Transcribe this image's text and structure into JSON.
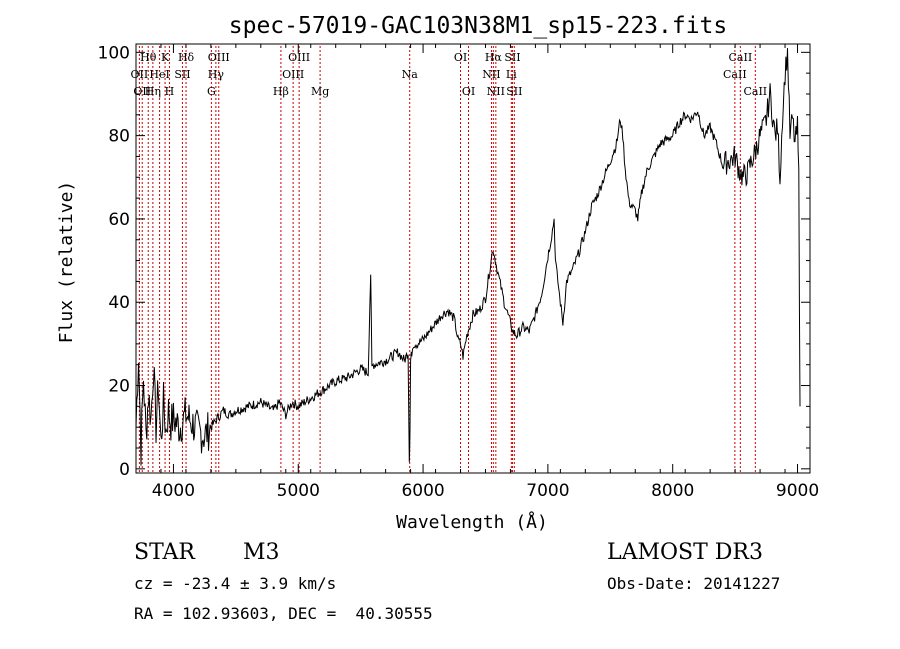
{
  "chart_data": {
    "type": "line",
    "title": "spec-57019-GAC103N38M1_sp15-223.fits",
    "xlabel": "Wavelength (Å)",
    "ylabel": "Flux (relative)",
    "xlim": [
      3700,
      9100
    ],
    "ylim": [
      -1,
      102
    ],
    "x_ticks": [
      4000,
      5000,
      6000,
      7000,
      8000,
      9000
    ],
    "y_ticks": [
      0,
      20,
      40,
      60,
      80,
      100
    ],
    "x_tick_labels": [
      "4000",
      "5000",
      "6000",
      "7000",
      "8000",
      "9000"
    ],
    "y_tick_labels": [
      "0",
      "20",
      "40",
      "60",
      "80",
      "100"
    ],
    "series": [
      {
        "name": "flux",
        "x": [
          3700,
          3720,
          3740,
          3760,
          3780,
          3800,
          3820,
          3840,
          3860,
          3880,
          3900,
          3920,
          3940,
          3960,
          3980,
          4000,
          4050,
          4100,
          4150,
          4200,
          4250,
          4300,
          4350,
          4400,
          4450,
          4500,
          4600,
          4700,
          4800,
          4850,
          4900,
          4950,
          5000,
          5100,
          5200,
          5300,
          5400,
          5500,
          5560,
          5580,
          5590,
          5600,
          5700,
          5800,
          5850,
          5880,
          5890,
          5895,
          5900,
          5905,
          5920,
          5950,
          6000,
          6050,
          6100,
          6150,
          6200,
          6250,
          6280,
          6300,
          6320,
          6350,
          6400,
          6450,
          6500,
          6540,
          6560,
          6580,
          6600,
          6650,
          6700,
          6720,
          6750,
          6800,
          6850,
          6900,
          6950,
          7000,
          7030,
          7050,
          7060,
          7080,
          7100,
          7120,
          7150,
          7200,
          7250,
          7300,
          7350,
          7400,
          7450,
          7500,
          7550,
          7580,
          7600,
          7620,
          7650,
          7700,
          7720,
          7750,
          7780,
          7800,
          7850,
          7900,
          8000,
          8050,
          8100,
          8150,
          8200,
          8250,
          8300,
          8350,
          8400,
          8450,
          8500,
          8530,
          8560,
          8600,
          8620,
          8660,
          8700,
          8730,
          8750,
          8760,
          8780,
          8800,
          8820,
          8840,
          8860,
          8880,
          8900,
          8920,
          8940,
          8960,
          8980,
          9000,
          9010,
          9020
        ],
        "y": [
          10,
          28,
          5,
          22,
          8,
          18,
          12,
          25,
          10,
          20,
          6,
          16,
          9,
          14,
          11,
          12,
          10,
          13,
          11,
          9,
          8,
          10,
          12,
          14,
          13,
          14,
          15,
          16,
          14,
          16,
          13,
          16,
          15,
          17,
          19,
          21,
          22,
          24,
          23,
          47,
          24,
          25,
          26,
          28,
          26,
          28,
          2,
          10,
          26,
          27,
          30,
          30,
          31,
          33,
          35,
          37,
          38,
          36,
          31,
          30,
          27,
          32,
          37,
          38,
          41,
          49,
          53,
          50,
          47,
          40,
          35,
          33,
          32,
          34,
          33,
          37,
          42,
          51,
          56,
          60,
          50,
          45,
          40,
          35,
          45,
          48,
          52,
          57,
          63,
          66,
          70,
          74,
          78,
          84,
          80,
          72,
          64,
          62,
          60,
          66,
          70,
          72,
          75,
          78,
          80,
          83,
          85,
          84,
          86,
          80,
          82,
          78,
          73,
          74,
          75,
          72,
          70,
          71,
          73,
          76,
          80,
          82,
          84,
          86,
          90,
          85,
          80,
          82,
          70,
          85,
          95,
          100,
          80,
          84,
          78,
          82,
          70,
          15
        ]
      }
    ],
    "lines": [
      {
        "wave": 3727,
        "label": "OII",
        "row": 1
      },
      {
        "wave": 3750,
        "label": "OII",
        "row": 2
      },
      {
        "wave": 3798,
        "label": "Hθ",
        "row": 0
      },
      {
        "wave": 3835,
        "label": "Hη",
        "row": 2
      },
      {
        "wave": 3889,
        "label": "HeI",
        "row": 1
      },
      {
        "wave": 3933,
        "label": "K",
        "row": 0
      },
      {
        "wave": 3968,
        "label": "H",
        "row": 2
      },
      {
        "wave": 4072,
        "label": "SII",
        "row": 1
      },
      {
        "wave": 4101,
        "label": "Hδ",
        "row": 0
      },
      {
        "wave": 4304,
        "label": "G",
        "row": 2
      },
      {
        "wave": 4340,
        "label": "Hγ",
        "row": 1
      },
      {
        "wave": 4363,
        "label": "OIII",
        "row": 0
      },
      {
        "wave": 4861,
        "label": "Hβ",
        "row": 2
      },
      {
        "wave": 4959,
        "label": "OIII",
        "row": 1
      },
      {
        "wave": 5007,
        "label": "OIII",
        "row": 0
      },
      {
        "wave": 5175,
        "label": "Mg",
        "row": 2
      },
      {
        "wave": 5893,
        "label": "Na",
        "row": 1
      },
      {
        "wave": 6300,
        "label": "OI",
        "row": 0
      },
      {
        "wave": 6364,
        "label": "OI",
        "row": 2
      },
      {
        "wave": 6548,
        "label": "NII",
        "row": 1
      },
      {
        "wave": 6563,
        "label": "Hα",
        "row": 0
      },
      {
        "wave": 6583,
        "label": "NII",
        "row": 2
      },
      {
        "wave": 6707,
        "label": "Li",
        "row": 1
      },
      {
        "wave": 6716,
        "label": "SII",
        "row": 0
      },
      {
        "wave": 6731,
        "label": "SII",
        "row": 2
      },
      {
        "wave": 8498,
        "label": "CaII",
        "row": 1
      },
      {
        "wave": 8542,
        "label": "CaII",
        "row": 0
      },
      {
        "wave": 8662,
        "label": "CaII",
        "row": 2
      }
    ]
  },
  "info": {
    "object_class": "STAR",
    "subclass": "M3",
    "survey": "LAMOST DR3",
    "redshift": "cz = -23.4 ± 3.9 km/s",
    "obs_date": "Obs-Date: 20141227",
    "coords": "RA = 102.93603, DEC =  40.30555"
  },
  "colors": {
    "line": "#000000",
    "marker": "#cc0000",
    "axis": "#000000"
  }
}
